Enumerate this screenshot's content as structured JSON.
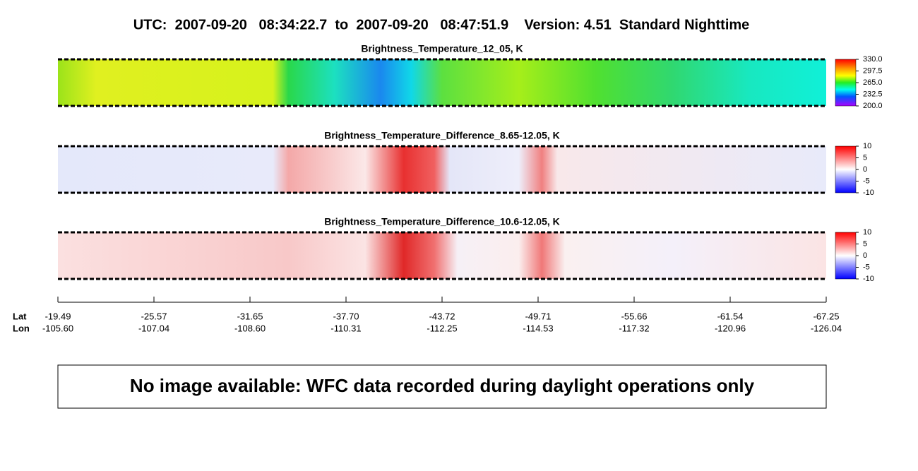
{
  "header": {
    "title": "UTC:  2007-09-20   08:34:22.7  to  2007-09-20   08:47:51.9    Version: 4.51  Standard Nighttime"
  },
  "panels": [
    {
      "title": "Brightness_Temperature_12_05, K",
      "colorbar_ticks": [
        "330.0",
        "297.5",
        "265.0",
        "232.5",
        "200.0"
      ]
    },
    {
      "title": "Brightness_Temperature_Difference_8.65-12.05, K",
      "colorbar_ticks": [
        "10",
        "5",
        "0",
        "-5",
        "-10"
      ]
    },
    {
      "title": "Brightness_Temperature_Difference_10.6-12.05, K",
      "colorbar_ticks": [
        "10",
        "5",
        "0",
        "-5",
        "-10"
      ]
    }
  ],
  "axis": {
    "lat_label": "Lat",
    "lon_label": "Lon",
    "lat": [
      "-19.49",
      "-25.57",
      "-31.65",
      "-37.70",
      "-43.72",
      "-49.71",
      "-55.66",
      "-61.54",
      "-67.25"
    ],
    "lon": [
      "-105.60",
      "-107.04",
      "-108.60",
      "-110.31",
      "-112.25",
      "-114.53",
      "-117.32",
      "-120.96",
      "-126.04"
    ]
  },
  "notice": "No image available: WFC data recorded during daylight operations only"
}
